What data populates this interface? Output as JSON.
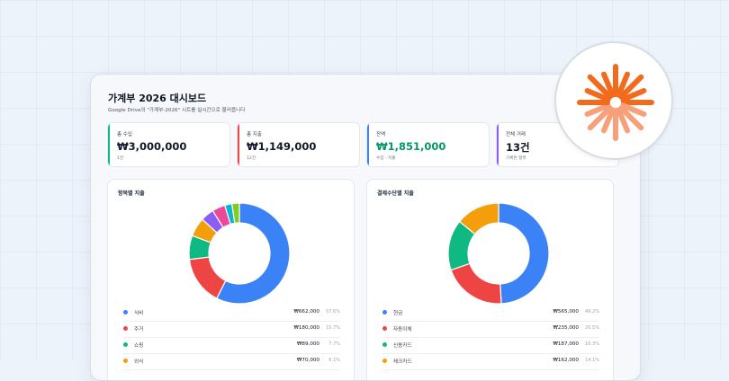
{
  "header": {
    "title": "가계부 2026 대시보드",
    "subtitle": "Google Drive의 \"가계부-2026\" 시트를 실시간으로 불러옵니다"
  },
  "cards": [
    {
      "label": "총 수입",
      "value": "₩3,000,000",
      "sub": "1건",
      "accent": "#10b981"
    },
    {
      "label": "총 지출",
      "value": "₩1,149,000",
      "sub": "12건",
      "accent": "#ef4444"
    },
    {
      "label": "잔액",
      "value": "₩1,851,000",
      "sub": "수입 - 지출",
      "accent": "#3b82f6",
      "value_color": "#059669"
    },
    {
      "label": "전체 거래",
      "value": "13건",
      "sub": "기록된 항목",
      "accent": "#8b5cf6"
    }
  ],
  "panels": {
    "category": {
      "title": "항목별 지출",
      "rows": [
        {
          "name": "식비",
          "amount": "₩662,000",
          "pct": "57.6%",
          "color": "#3b82f6"
        },
        {
          "name": "주거",
          "amount": "₩180,000",
          "pct": "15.7%",
          "color": "#ef4444"
        },
        {
          "name": "쇼핑",
          "amount": "₩89,000",
          "pct": "7.7%",
          "color": "#10b981"
        },
        {
          "name": "외식",
          "amount": "₩70,000",
          "pct": "6.1%",
          "color": "#f59e0b"
        }
      ]
    },
    "payment": {
      "title": "결제수단별 지출",
      "rows": [
        {
          "name": "현금",
          "amount": "₩565,000",
          "pct": "49.2%",
          "color": "#3b82f6"
        },
        {
          "name": "자동이체",
          "amount": "₩235,000",
          "pct": "20.5%",
          "color": "#ef4444"
        },
        {
          "name": "신용카드",
          "amount": "₩187,000",
          "pct": "16.3%",
          "color": "#10b981"
        },
        {
          "name": "체크카드",
          "amount": "₩162,000",
          "pct": "14.1%",
          "color": "#f59e0b"
        }
      ]
    }
  },
  "chart_data": [
    {
      "type": "pie",
      "title": "항목별 지출",
      "categories": [
        "식비",
        "주거",
        "쇼핑",
        "외식",
        "",
        "",
        "",
        ""
      ],
      "values": [
        57.6,
        15.7,
        7.7,
        6.1,
        4.3,
        4.2,
        2.3,
        2.4
      ],
      "colors": [
        "#3b82f6",
        "#ef4444",
        "#10b981",
        "#f59e0b",
        "#8b5cf6",
        "#ec4899",
        "#06b6d4",
        "#84cc16"
      ]
    },
    {
      "type": "pie",
      "title": "결제수단별 지출",
      "categories": [
        "현금",
        "자동이체",
        "신용카드",
        "체크카드"
      ],
      "values": [
        49.2,
        20.5,
        16.3,
        14.1
      ],
      "colors": [
        "#3b82f6",
        "#ef4444",
        "#10b981",
        "#f59e0b"
      ]
    }
  ],
  "badge": {
    "icon": "sparkle-burst-icon",
    "colors": [
      "#f26b1d",
      "#f7a07a"
    ]
  }
}
